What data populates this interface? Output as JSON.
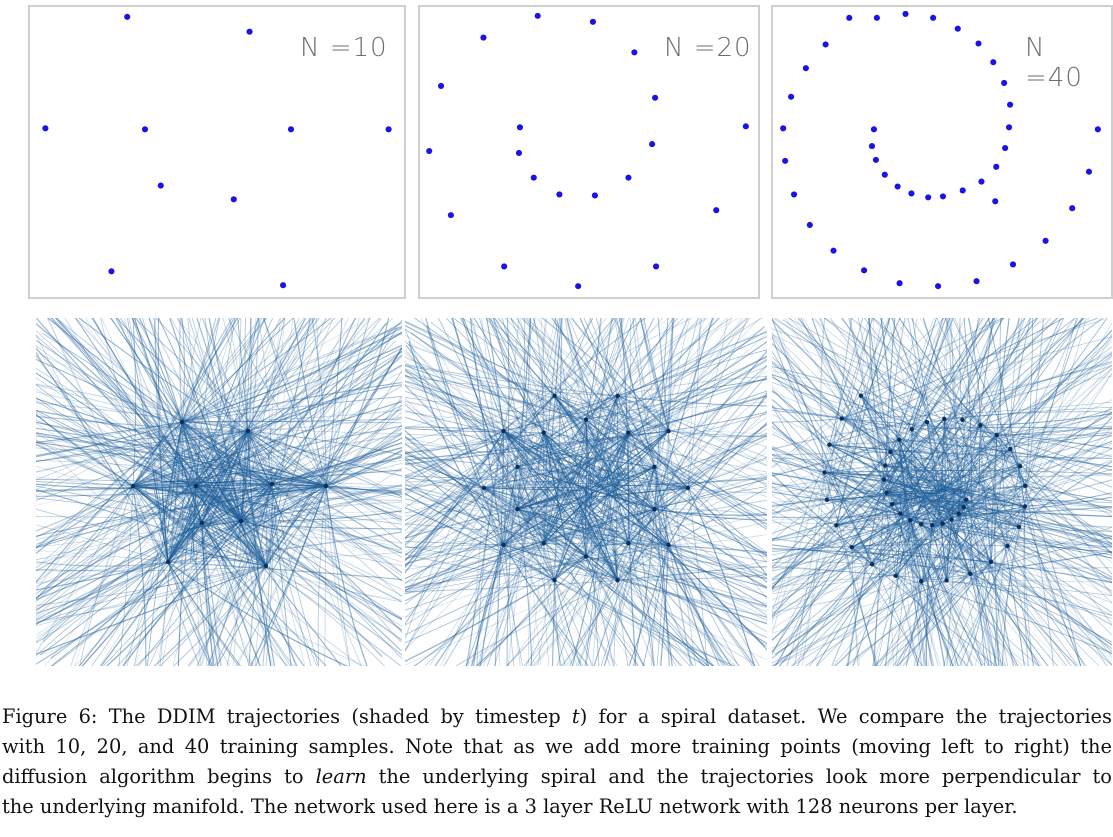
{
  "panels": [
    {
      "label": "N =10"
    },
    {
      "label": "N =20"
    },
    {
      "label": "N =40"
    }
  ],
  "colors": {
    "dot": "#1a12e6",
    "trajectory": "#1f5f9a",
    "panel_border": "#cfcfcf"
  },
  "caption": {
    "line1_a": "Figure 6: The DDIM trajectories (shaded by timestep ",
    "line1_t": "t",
    "line1_b": ") for a spiral dataset. We compare the trajectories",
    "line2": "with 10, 20, and 40 training samples. Note that as we add more training points (moving left to right) the",
    "line3_a": "diffusion algorithm begins to ",
    "line3_em": "learn",
    "line3_b": " the underlying spiral and the trajectories look more perpendicular to",
    "line4": "the underlying manifold. The network used here is a 3 layer ReLU network with 128 neurons per layer."
  }
}
